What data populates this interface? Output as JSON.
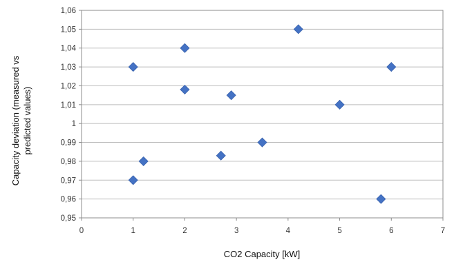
{
  "chart_data": {
    "type": "scatter",
    "title": "",
    "xlabel": "CO2 Capacity [kW]",
    "ylabel_lines": [
      "Capacity deviation (measured vs",
      "predicted values)"
    ],
    "xlim": [
      0,
      7
    ],
    "ylim": [
      0.95,
      1.06
    ],
    "grid": "horizontal",
    "legend": "none",
    "marker": "diamond",
    "marker_color": "#4472C4",
    "gridline_color": "#bdbdbd",
    "x_tick_labels": [
      "0",
      "1",
      "2",
      "3",
      "4",
      "5",
      "6",
      "7"
    ],
    "y_tick_labels": [
      "0,95",
      "0,96",
      "0,97",
      "0,98",
      "0,99",
      "1",
      "1,01",
      "1,02",
      "1,03",
      "1,04",
      "1,05",
      "1,06"
    ],
    "series": [
      {
        "points": [
          {
            "x": 1.0,
            "y": 1.03
          },
          {
            "x": 1.0,
            "y": 0.97
          },
          {
            "x": 1.2,
            "y": 0.98
          },
          {
            "x": 2.0,
            "y": 1.04
          },
          {
            "x": 2.0,
            "y": 1.018
          },
          {
            "x": 2.7,
            "y": 0.983
          },
          {
            "x": 2.9,
            "y": 1.015
          },
          {
            "x": 3.5,
            "y": 0.99
          },
          {
            "x": 4.2,
            "y": 1.05
          },
          {
            "x": 5.0,
            "y": 1.01
          },
          {
            "x": 5.8,
            "y": 0.96
          },
          {
            "x": 6.0,
            "y": 1.03
          }
        ]
      }
    ]
  }
}
